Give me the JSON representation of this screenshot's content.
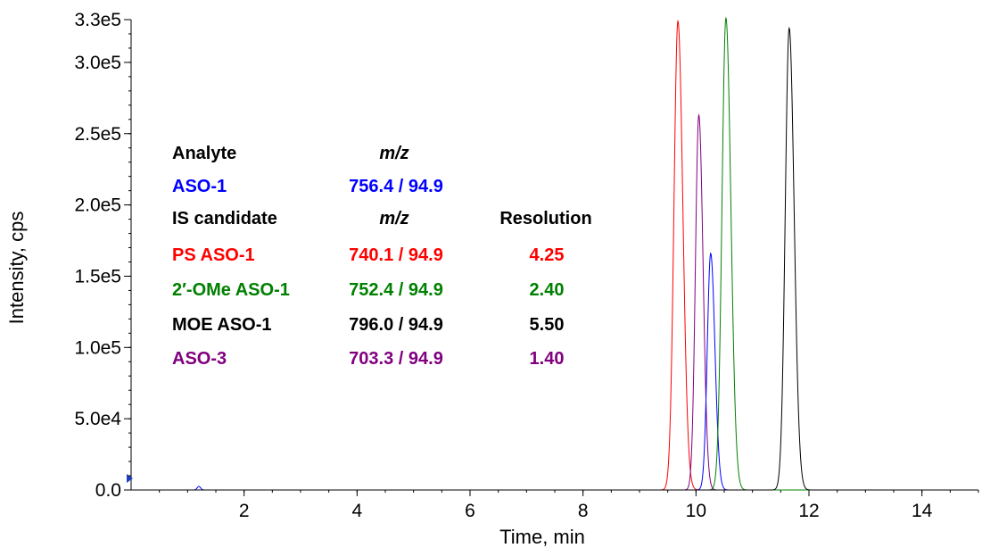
{
  "chart_data": {
    "type": "line",
    "title": "",
    "xlabel": "Time, min",
    "ylabel": "Intensity, cps",
    "xlim": [
      0,
      15
    ],
    "ylim": [
      0,
      330000
    ],
    "x_ticks": [
      2,
      4,
      6,
      8,
      10,
      12,
      14
    ],
    "x_tick_labels": [
      "2",
      "4",
      "6",
      "8",
      "10",
      "12",
      "14"
    ],
    "y_ticks": [
      0,
      50000,
      100000,
      150000,
      200000,
      250000,
      300000,
      330000
    ],
    "y_tick_labels": [
      "0.0",
      "5.0e4",
      "1.0e5",
      "1.5e5",
      "2.0e5",
      "2.5e5",
      "3.0e5",
      "3.3e5"
    ],
    "grid": false,
    "legend_position": "left",
    "series": [
      {
        "name": "PS ASO-1",
        "color": "#ff0000",
        "peak_time": 9.68,
        "peak_intensity": 329000,
        "width": 0.07
      },
      {
        "name": "ASO-3",
        "color": "#800080",
        "peak_time": 10.05,
        "peak_intensity": 263000,
        "width": 0.06
      },
      {
        "name": "ASO-1",
        "color": "#0000ff",
        "peak_time": 10.26,
        "peak_intensity": 166000,
        "width": 0.06
      },
      {
        "name": "2′-OMe ASO-1",
        "color": "#008000",
        "peak_time": 10.53,
        "peak_intensity": 331000,
        "width": 0.07
      },
      {
        "name": "MOE ASO-1",
        "color": "#000000",
        "peak_time": 11.65,
        "peak_intensity": 324000,
        "width": 0.07
      }
    ],
    "legend_table": {
      "header1": {
        "analyte": "Analyte",
        "mz": "m/z"
      },
      "analyte_row": {
        "name": "ASO-1",
        "mz": "756.4 / 94.9",
        "color": "#0000ff"
      },
      "header2": {
        "candidate": "IS candidate",
        "mz": "m/z",
        "resolution": "Resolution"
      },
      "rows": [
        {
          "name": "PS ASO-1",
          "mz": "740.1 / 94.9",
          "resolution": "4.25",
          "color": "#ff0000"
        },
        {
          "name": "2′-OMe ASO-1",
          "mz": "752.4 / 94.9",
          "resolution": "2.40",
          "color": "#008000"
        },
        {
          "name": "MOE ASO-1",
          "mz": "796.0 / 94.9",
          "resolution": "5.50",
          "color": "#000000"
        },
        {
          "name": "ASO-3",
          "mz": "703.3 / 94.9",
          "resolution": "1.40",
          "color": "#800080"
        }
      ]
    }
  }
}
